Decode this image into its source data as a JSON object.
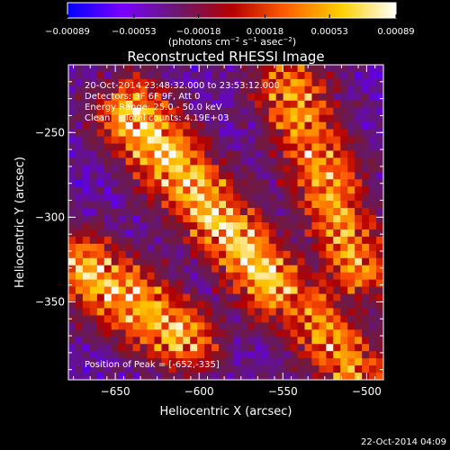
{
  "chart_data": {
    "type": "heatmap",
    "title": "Reconstructed RHESSI Image",
    "xlabel": "Heliocentric X (arcsec)",
    "ylabel": "Heliocentric Y (arcsec)",
    "xlim": [
      -678,
      -490
    ],
    "ylim": [
      -396,
      -210
    ],
    "x_ticks": [
      -650,
      -600,
      -550,
      -500
    ],
    "x_tick_labels": [
      "−650",
      "−600",
      "−550",
      "−500"
    ],
    "y_ticks": [
      -250,
      -300,
      -350
    ],
    "y_tick_labels": [
      "−250",
      "−300",
      "−350"
    ],
    "colorbar": {
      "range": [
        -0.00089,
        0.00089
      ],
      "ticks": [
        -0.00089,
        -0.00053,
        -0.00018,
        0.00018,
        0.00053,
        0.00089
      ],
      "tick_labels": [
        "−0.00089",
        "−0.00053",
        "−0.00018",
        "0.00018",
        "0.00053",
        "0.00089"
      ],
      "unit_label_parts": [
        "(photons cm",
        "−2",
        " s",
        "−1",
        " asec",
        "−2",
        ")"
      ],
      "colors": [
        "#0000ff",
        "#7a00ff",
        "#6a1870",
        "#b40000",
        "#ff6000",
        "#ffd000",
        "#ffffff"
      ]
    },
    "annotations": [
      "20-Oct-2014 23:48:32.000 to 23:53:12.000",
      "Detectors: 3F 6F 9F, Att 0",
      "Energy Range: 25.0 - 50.0 keV",
      "Clean     Total counts: 4.19E+03"
    ],
    "peak_label": "Position of Peak = [-652,-335]",
    "peak_position": [
      -652,
      -335
    ],
    "emission_ridges": [
      {
        "x1": -640,
        "y1": -240,
        "x2": -555,
        "y2": -340,
        "amplitude": 1.0
      },
      {
        "x1": -670,
        "y1": -330,
        "x2": -610,
        "y2": -370,
        "amplitude": 0.95
      },
      {
        "x1": -545,
        "y1": -225,
        "x2": -505,
        "y2": -330,
        "amplitude": 0.85
      },
      {
        "x1": -535,
        "y1": -355,
        "x2": -505,
        "y2": -395,
        "amplitude": 0.8
      }
    ]
  },
  "footer": {
    "timestamp": "22-Oct-2014 04:09"
  }
}
